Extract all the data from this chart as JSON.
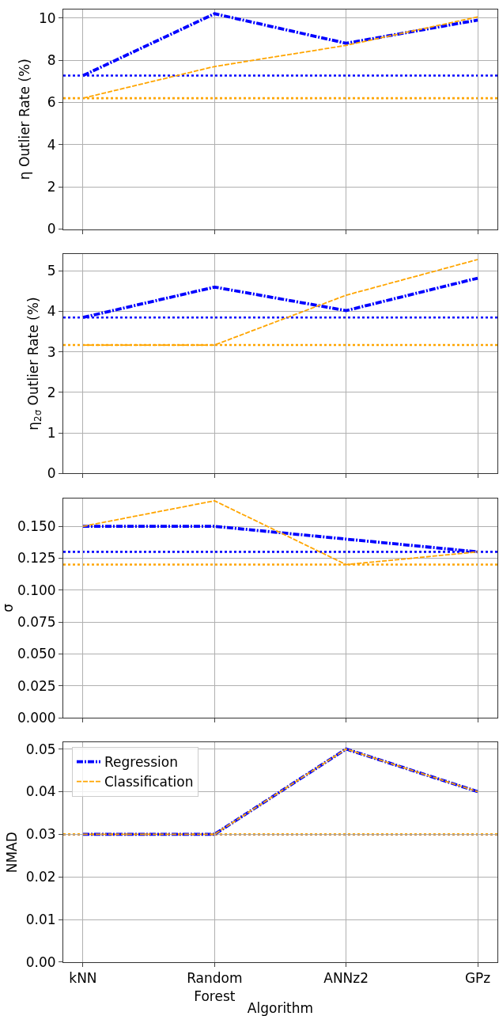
{
  "chart_data": [
    {
      "type": "line",
      "ylabel": "η Outlier Rate (%)",
      "ylim": [
        0,
        10.4
      ],
      "yticks": [
        0,
        2,
        4,
        6,
        8,
        10
      ],
      "grid": true,
      "tick_labels": "y",
      "legend": false,
      "marker": "none",
      "series": [
        {
          "color": "#0000ff",
          "line_style": "dashdot",
          "values": [
            7.27,
            10.2,
            8.8,
            9.9
          ]
        },
        {
          "color": "#ffa500",
          "line_style": "dashed",
          "values": [
            6.2,
            7.7,
            8.7,
            10.05
          ]
        }
      ],
      "ref_lines": [
        {
          "axis": "y",
          "value": 7.27,
          "color": "#0000ff",
          "line_style": "dotted"
        },
        {
          "axis": "y",
          "value": 6.2,
          "color": "#ffa500",
          "line_style": "dotted"
        }
      ]
    },
    {
      "type": "line",
      "ylabel": "η$_{2σ}$ Outlier Rate (%)",
      "ylim": [
        0,
        5.42
      ],
      "yticks": [
        0,
        1,
        2,
        3,
        4,
        5
      ],
      "grid": true,
      "tick_labels": "y",
      "legend": false,
      "marker": "none",
      "series": [
        {
          "color": "#0000ff",
          "line_style": "dashdot",
          "values": [
            3.85,
            4.6,
            4.02,
            4.82
          ]
        },
        {
          "color": "#ffa500",
          "line_style": "dashed",
          "values": [
            3.17,
            3.17,
            4.4,
            5.28
          ]
        }
      ],
      "ref_lines": [
        {
          "axis": "y",
          "value": 3.85,
          "color": "#0000ff",
          "line_style": "dotted"
        },
        {
          "axis": "y",
          "value": 3.17,
          "color": "#ffa500",
          "line_style": "dotted"
        }
      ]
    },
    {
      "type": "line",
      "ylabel": "σ",
      "ylim": [
        0,
        0.172
      ],
      "yticks": [
        {
          "value": 0,
          "label": "0.000"
        },
        {
          "value": 0.025,
          "label": "0.025"
        },
        {
          "value": 0.05,
          "label": "0.050"
        },
        {
          "value": 0.075,
          "label": "0.075"
        },
        {
          "value": 0.1,
          "label": "0.100"
        },
        {
          "value": 0.125,
          "label": "0.125"
        },
        {
          "value": 0.15,
          "label": "0.150"
        }
      ],
      "grid": true,
      "tick_labels": "y",
      "legend": false,
      "marker": "none",
      "series": [
        {
          "color": "#0000ff",
          "line_style": "dashdot",
          "values": [
            0.15,
            0.15,
            0.14,
            0.13
          ]
        },
        {
          "color": "#ffa500",
          "line_style": "dashed",
          "values": [
            0.15,
            0.17,
            0.12,
            0.13
          ]
        }
      ],
      "ref_lines": [
        {
          "axis": "y",
          "value": 0.13,
          "color": "#0000ff",
          "line_style": "dotted"
        },
        {
          "axis": "y",
          "value": 0.12,
          "color": "#ffa500",
          "line_style": "dotted"
        }
      ]
    },
    {
      "type": "line",
      "categories": [
        "kNN",
        "Random Forest",
        "ANNz2",
        "GPz"
      ],
      "xlabel": "Algorithm",
      "ylabel": "NMAD",
      "ylim": [
        0,
        0.0515
      ],
      "yticks": [
        {
          "value": 0,
          "label": "0.00"
        },
        {
          "value": 0.01,
          "label": "0.01"
        },
        {
          "value": 0.02,
          "label": "0.02"
        },
        {
          "value": 0.03,
          "label": "0.03"
        },
        {
          "value": 0.04,
          "label": "0.04"
        },
        {
          "value": 0.05,
          "label": "0.05"
        }
      ],
      "grid": true,
      "legend": "top left",
      "marker": "none",
      "series": [
        {
          "name": "Regression",
          "color": "#0000ff",
          "line_style": "dashdot",
          "values": [
            0.03,
            0.03,
            0.05,
            0.04
          ]
        },
        {
          "name": "Classification",
          "color": "#ffa500",
          "line_style": "dashed",
          "values": [
            0.03,
            0.03,
            0.05,
            0.04
          ]
        }
      ],
      "ref_lines": [
        {
          "axis": "y",
          "value": 0.03,
          "color": "#0000ff",
          "line_style": "dotted"
        },
        {
          "axis": "y",
          "value": 0.03,
          "color": "#ffa500",
          "line_style": "dotted"
        }
      ]
    }
  ]
}
